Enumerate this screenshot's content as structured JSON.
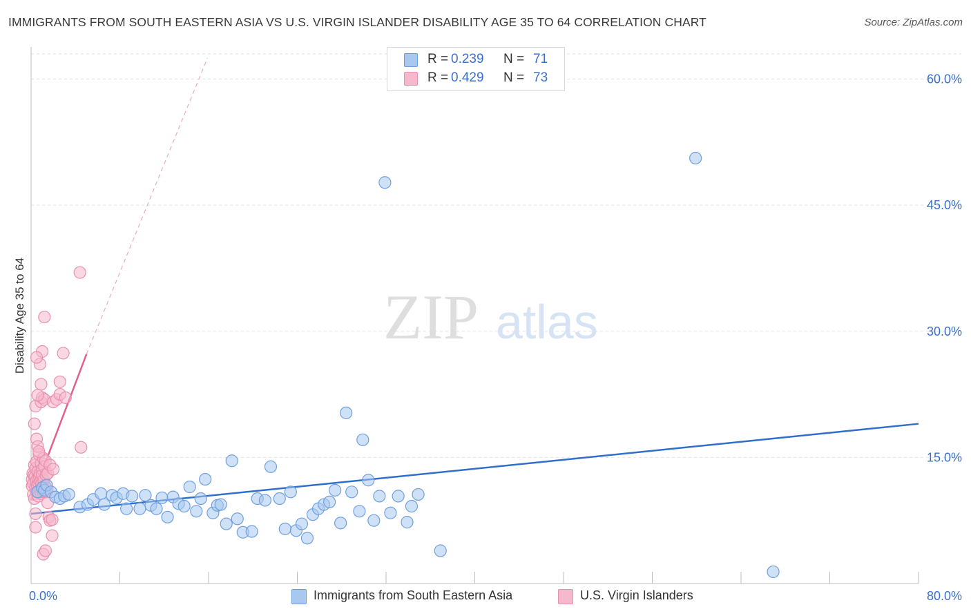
{
  "title": "IMMIGRANTS FROM SOUTH EASTERN ASIA VS U.S. VIRGIN ISLANDER DISABILITY AGE 35 TO 64 CORRELATION CHART",
  "source": "Source: ZipAtlas.com",
  "watermark": {
    "zip": "ZIP",
    "atlas": "atlas"
  },
  "legend_top": {
    "rows": [
      {
        "r_label": "R =",
        "r_value": "0.239",
        "n_label": "N =",
        "n_value": "71"
      },
      {
        "r_label": "R =",
        "r_value": "0.429",
        "n_label": "N =",
        "n_value": "73"
      }
    ]
  },
  "legend_bottom": {
    "series_a": "Immigrants from South Eastern Asia",
    "series_b": "U.S. Virgin Islanders"
  },
  "colors": {
    "blue_fill": "#a8c8f0",
    "blue_stroke": "#6f9fe0",
    "blue_line": "#2f6fcc",
    "pink_fill": "#f5b8cc",
    "pink_stroke": "#e890ad",
    "pink_line": "#e0608a",
    "tick_text": "#3a6fd0"
  },
  "chart_data": {
    "type": "scatter",
    "title": "IMMIGRANTS FROM SOUTH EASTERN ASIA VS U.S. VIRGIN ISLANDER DISABILITY AGE 35 TO 64 CORRELATION CHART",
    "xlabel": "",
    "ylabel": "Disability Age 35 to 64",
    "xlim": [
      0,
      80
    ],
    "ylim": [
      0,
      63
    ],
    "x_tick_labels": [
      "0.0%",
      "80.0%"
    ],
    "y_ticks": [
      15,
      30,
      45,
      60
    ],
    "y_tick_labels": [
      "15.0%",
      "30.0%",
      "45.0%",
      "60.0%"
    ],
    "series": [
      {
        "name": "Immigrants from South Eastern Asia",
        "color": "blue",
        "r": 0.239,
        "n": 71,
        "trend": {
          "x": [
            0,
            80
          ],
          "y": [
            8.3,
            19.0
          ]
        },
        "points": [
          [
            0.6,
            10.9
          ],
          [
            1.0,
            11.4
          ],
          [
            1.2,
            11.1
          ],
          [
            1.4,
            11.7
          ],
          [
            1.8,
            10.9
          ],
          [
            2.2,
            10.3
          ],
          [
            2.6,
            10.1
          ],
          [
            3.0,
            10.4
          ],
          [
            3.4,
            10.6
          ],
          [
            4.4,
            9.1
          ],
          [
            5.1,
            9.4
          ],
          [
            5.6,
            10.0
          ],
          [
            6.3,
            10.7
          ],
          [
            6.6,
            9.4
          ],
          [
            7.3,
            10.5
          ],
          [
            7.7,
            10.2
          ],
          [
            8.3,
            10.7
          ],
          [
            8.6,
            8.9
          ],
          [
            9.1,
            10.4
          ],
          [
            9.8,
            8.9
          ],
          [
            10.3,
            10.5
          ],
          [
            10.8,
            9.3
          ],
          [
            11.3,
            8.9
          ],
          [
            11.8,
            10.2
          ],
          [
            12.3,
            7.9
          ],
          [
            12.8,
            10.3
          ],
          [
            13.3,
            9.5
          ],
          [
            13.8,
            9.2
          ],
          [
            14.3,
            11.5
          ],
          [
            14.9,
            8.6
          ],
          [
            15.3,
            10.1
          ],
          [
            15.7,
            12.4
          ],
          [
            16.4,
            8.4
          ],
          [
            16.8,
            9.3
          ],
          [
            17.1,
            9.4
          ],
          [
            17.6,
            7.1
          ],
          [
            18.1,
            14.6
          ],
          [
            18.6,
            7.7
          ],
          [
            19.1,
            6.1
          ],
          [
            19.9,
            6.2
          ],
          [
            20.4,
            10.1
          ],
          [
            21.1,
            9.9
          ],
          [
            21.6,
            13.9
          ],
          [
            22.4,
            10.1
          ],
          [
            22.9,
            6.5
          ],
          [
            23.4,
            10.9
          ],
          [
            23.9,
            6.3
          ],
          [
            24.4,
            7.1
          ],
          [
            24.9,
            5.4
          ],
          [
            25.4,
            8.2
          ],
          [
            25.9,
            8.9
          ],
          [
            26.4,
            9.4
          ],
          [
            26.9,
            9.7
          ],
          [
            27.4,
            11.1
          ],
          [
            27.9,
            7.2
          ],
          [
            28.4,
            20.3
          ],
          [
            28.9,
            10.9
          ],
          [
            29.6,
            8.6
          ],
          [
            29.9,
            17.1
          ],
          [
            30.4,
            12.3
          ],
          [
            30.9,
            7.5
          ],
          [
            31.4,
            10.4
          ],
          [
            31.9,
            47.7
          ],
          [
            32.4,
            8.4
          ],
          [
            33.1,
            10.4
          ],
          [
            33.9,
            7.3
          ],
          [
            34.3,
            9.2
          ],
          [
            34.9,
            10.6
          ],
          [
            36.9,
            3.9
          ],
          [
            59.9,
            50.6
          ],
          [
            66.9,
            1.4
          ]
        ]
      },
      {
        "name": "U.S. Virgin Islanders",
        "color": "pink",
        "r": 0.429,
        "n": 73,
        "trend": {
          "x": [
            0,
            5.0
          ],
          "y": [
            9.9,
            27.3
          ]
        },
        "trend_extension": {
          "x": [
            5.0,
            15.9
          ],
          "y": [
            27.3,
            62.5
          ]
        },
        "points": [
          [
            0.1,
            11.6
          ],
          [
            0.1,
            12.4
          ],
          [
            0.15,
            13.1
          ],
          [
            0.2,
            10.6
          ],
          [
            0.2,
            11.9
          ],
          [
            0.25,
            12.9
          ],
          [
            0.3,
            14.1
          ],
          [
            0.3,
            10.1
          ],
          [
            0.35,
            12.7
          ],
          [
            0.4,
            11.4
          ],
          [
            0.4,
            13.7
          ],
          [
            0.45,
            12.2
          ],
          [
            0.5,
            10.9
          ],
          [
            0.5,
            14.5
          ],
          [
            0.55,
            11.7
          ],
          [
            0.6,
            13.3
          ],
          [
            0.6,
            12.5
          ],
          [
            0.65,
            10.4
          ],
          [
            0.7,
            11.9
          ],
          [
            0.7,
            15.4
          ],
          [
            0.75,
            12.7
          ],
          [
            0.8,
            11.1
          ],
          [
            0.8,
            13.1
          ],
          [
            0.85,
            12.1
          ],
          [
            0.9,
            14.3
          ],
          [
            0.9,
            10.7
          ],
          [
            0.95,
            11.9
          ],
          [
            1.0,
            13.6
          ],
          [
            1.0,
            12.9
          ],
          [
            1.05,
            11.3
          ],
          [
            1.1,
            14.9
          ],
          [
            1.1,
            10.9
          ],
          [
            1.15,
            12.3
          ],
          [
            1.2,
            13.9
          ],
          [
            1.25,
            11.6
          ],
          [
            1.3,
            14.6
          ],
          [
            1.35,
            12.9
          ],
          [
            1.4,
            10.9
          ],
          [
            1.45,
            11.3
          ],
          [
            1.5,
            13.1
          ],
          [
            0.3,
            19.0
          ],
          [
            0.4,
            21.1
          ],
          [
            0.5,
            17.2
          ],
          [
            0.6,
            16.3
          ],
          [
            0.7,
            15.7
          ],
          [
            0.8,
            26.1
          ],
          [
            0.9,
            21.6
          ],
          [
            0.9,
            23.7
          ],
          [
            1.0,
            22.1
          ],
          [
            1.0,
            27.6
          ],
          [
            1.2,
            31.7
          ],
          [
            1.2,
            21.9
          ],
          [
            1.5,
            9.6
          ],
          [
            1.6,
            7.9
          ],
          [
            1.7,
            7.5
          ],
          [
            1.7,
            14.1
          ],
          [
            1.9,
            7.6
          ],
          [
            1.9,
            5.7
          ],
          [
            2.0,
            21.6
          ],
          [
            2.0,
            13.6
          ],
          [
            2.3,
            21.9
          ],
          [
            2.6,
            24.0
          ],
          [
            2.6,
            22.5
          ],
          [
            2.9,
            27.4
          ],
          [
            3.1,
            22.1
          ],
          [
            4.4,
            37.0
          ],
          [
            4.5,
            16.2
          ],
          [
            0.5,
            26.9
          ],
          [
            0.6,
            22.4
          ],
          [
            0.4,
            8.3
          ],
          [
            0.4,
            6.7
          ],
          [
            1.1,
            3.5
          ],
          [
            1.3,
            3.9
          ]
        ]
      }
    ]
  }
}
